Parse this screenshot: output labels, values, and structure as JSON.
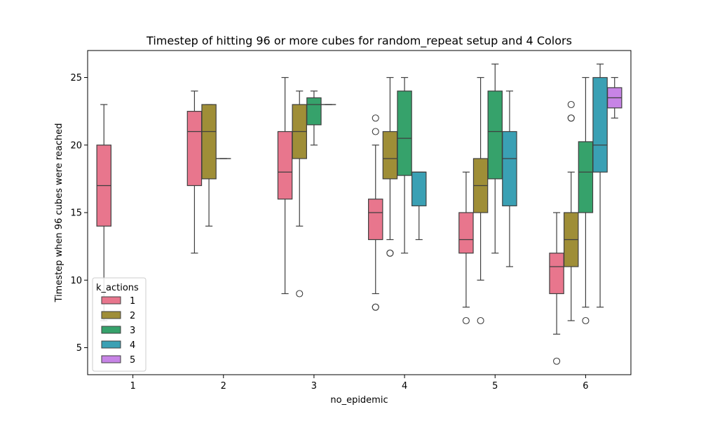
{
  "chart_data": {
    "type": "box",
    "title": "Timestep of hitting 96 or more cubes for random_repeat setup and 4 Colors",
    "xlabel": "no_epidemic",
    "ylabel": "Timestep when 96 cubes were reached",
    "categories": [
      "1",
      "2",
      "3",
      "4",
      "5",
      "6"
    ],
    "ylim": [
      3,
      27
    ],
    "yticks": [
      5,
      10,
      15,
      20,
      25
    ],
    "grid": false,
    "legend": {
      "title": "k_actions",
      "position": "lower-left"
    },
    "series": [
      {
        "name": "1",
        "color": "#e8768d",
        "boxes": [
          {
            "category": "1",
            "whislo": 7,
            "q1": 14,
            "med": 17,
            "q3": 20,
            "whishi": 23,
            "fliers": []
          },
          {
            "category": "2",
            "whislo": 12,
            "q1": 17,
            "med": 21,
            "q3": 22.5,
            "whishi": 24,
            "fliers": []
          },
          {
            "category": "3",
            "whislo": 9,
            "q1": 16,
            "med": 18,
            "q3": 21,
            "whishi": 25,
            "fliers": []
          },
          {
            "category": "4",
            "whislo": 9,
            "q1": 13,
            "med": 15,
            "q3": 16,
            "whishi": 20,
            "fliers": [
              8,
              8,
              21,
              22
            ]
          },
          {
            "category": "5",
            "whislo": 8,
            "q1": 12,
            "med": 13,
            "q3": 15,
            "whishi": 18,
            "fliers": [
              7
            ]
          },
          {
            "category": "6",
            "whislo": 6,
            "q1": 9,
            "med": 11,
            "q3": 12,
            "whishi": 15,
            "fliers": [
              4
            ]
          }
        ]
      },
      {
        "name": "2",
        "color": "#9f8e37",
        "boxes": [
          {
            "category": "2",
            "whislo": 14,
            "q1": 17.5,
            "med": 21,
            "q3": 23,
            "whishi": 23,
            "fliers": []
          },
          {
            "category": "3",
            "whislo": 14,
            "q1": 19,
            "med": 21,
            "q3": 23,
            "whishi": 24,
            "fliers": [
              9
            ]
          },
          {
            "category": "4",
            "whislo": 13,
            "q1": 17.5,
            "med": 19,
            "q3": 21,
            "whishi": 25,
            "fliers": [
              12,
              12
            ]
          },
          {
            "category": "5",
            "whislo": 10,
            "q1": 15,
            "med": 17,
            "q3": 19,
            "whishi": 25,
            "fliers": [
              7
            ]
          },
          {
            "category": "6",
            "whislo": 7,
            "q1": 11,
            "med": 13,
            "q3": 15,
            "whishi": 18,
            "fliers": [
              22,
              22,
              23
            ]
          }
        ]
      },
      {
        "name": "3",
        "color": "#36a26b",
        "boxes": [
          {
            "category": "2",
            "whislo": 19,
            "q1": 19,
            "med": 19,
            "q3": 19,
            "whishi": 19,
            "fliers": []
          },
          {
            "category": "3",
            "whislo": 20,
            "q1": 21.5,
            "med": 23,
            "q3": 23.5,
            "whishi": 24,
            "fliers": []
          },
          {
            "category": "4",
            "whislo": 12,
            "q1": 17.75,
            "med": 20.5,
            "q3": 24,
            "whishi": 25,
            "fliers": []
          },
          {
            "category": "5",
            "whislo": 12,
            "q1": 17.5,
            "med": 21,
            "q3": 24,
            "whishi": 26,
            "fliers": []
          },
          {
            "category": "6",
            "whislo": 8,
            "q1": 15,
            "med": 18,
            "q3": 20.25,
            "whishi": 25,
            "fliers": [
              7
            ]
          }
        ]
      },
      {
        "name": "4",
        "color": "#3aa0b4",
        "boxes": [
          {
            "category": "3",
            "whislo": 23,
            "q1": 23,
            "med": 23,
            "q3": 23,
            "whishi": 23,
            "fliers": []
          },
          {
            "category": "4",
            "whislo": 13,
            "q1": 15.5,
            "med": 18,
            "q3": 18,
            "whishi": 18,
            "fliers": []
          },
          {
            "category": "5",
            "whislo": 11,
            "q1": 15.5,
            "med": 19,
            "q3": 21,
            "whishi": 24,
            "fliers": []
          },
          {
            "category": "6",
            "whislo": 8,
            "q1": 18,
            "med": 20,
            "q3": 25,
            "whishi": 26,
            "fliers": []
          }
        ]
      },
      {
        "name": "5",
        "color": "#c784e6",
        "boxes": [
          {
            "category": "6",
            "whislo": 22,
            "q1": 22.75,
            "med": 23.5,
            "q3": 24.25,
            "whishi": 25,
            "fliers": []
          }
        ]
      }
    ]
  }
}
